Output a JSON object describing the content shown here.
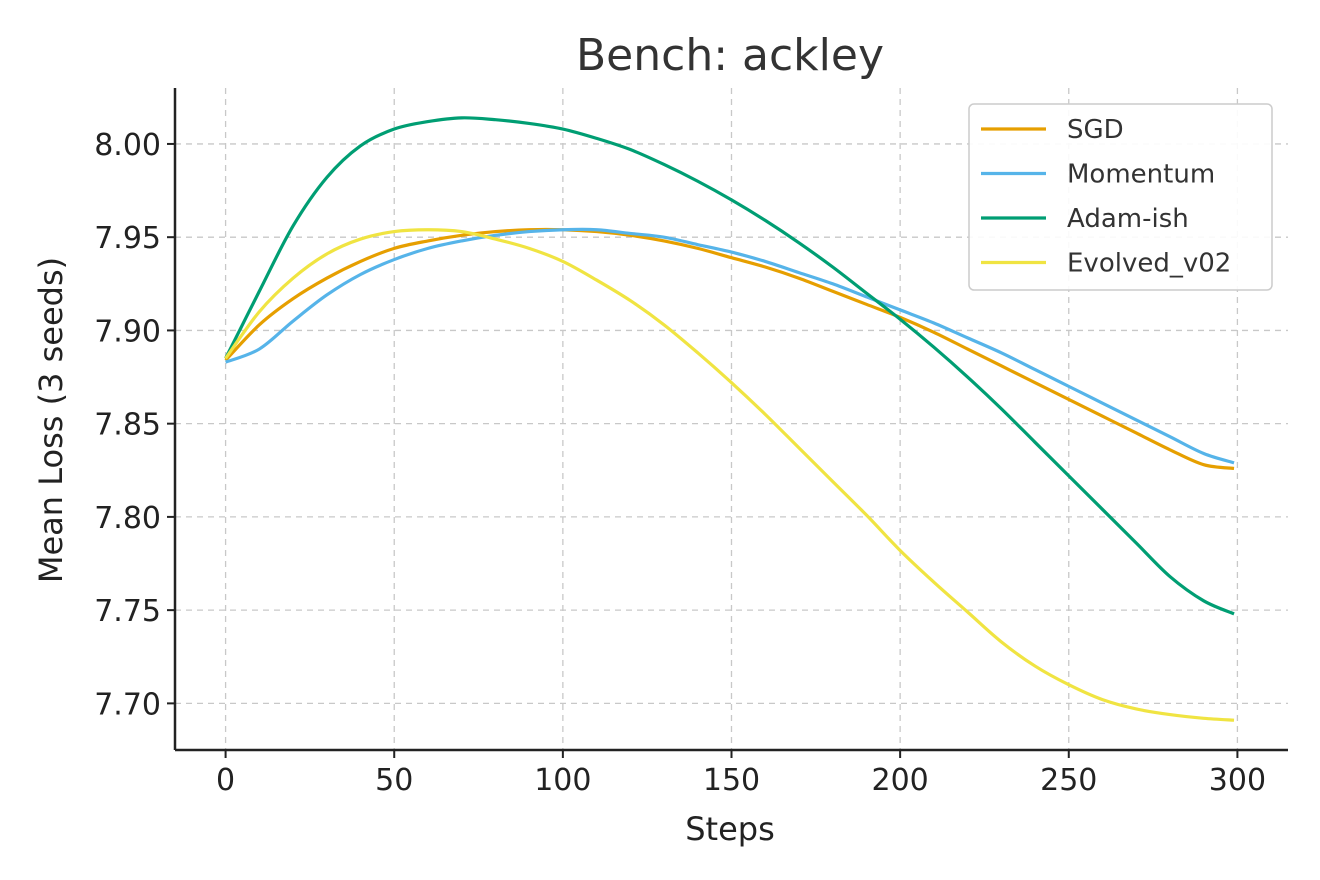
{
  "chart_data": {
    "type": "line",
    "title": "Bench: ackley",
    "xlabel": "Steps",
    "ylabel": "Mean Loss (3 seeds)",
    "xlim": [
      -15,
      315
    ],
    "ylim": [
      7.675,
      8.03
    ],
    "xticks": [
      0,
      50,
      100,
      150,
      200,
      250,
      300
    ],
    "xtick_labels": [
      "0",
      "50",
      "100",
      "150",
      "200",
      "250",
      "300"
    ],
    "yticks": [
      7.7,
      7.75,
      7.8,
      7.85,
      7.9,
      7.95,
      8.0
    ],
    "ytick_labels": [
      "7.70",
      "7.75",
      "7.80",
      "7.85",
      "7.90",
      "7.95",
      "8.00"
    ],
    "grid": true,
    "legend_position": "top-right",
    "x": [
      0,
      10,
      20,
      30,
      40,
      50,
      60,
      70,
      80,
      90,
      100,
      110,
      120,
      130,
      140,
      150,
      160,
      170,
      180,
      190,
      200,
      210,
      220,
      230,
      240,
      250,
      260,
      270,
      280,
      290,
      299
    ],
    "series": [
      {
        "name": "SGD",
        "color": "#E69F00",
        "values": [
          7.884,
          7.903,
          7.917,
          7.928,
          7.937,
          7.944,
          7.948,
          7.951,
          7.953,
          7.954,
          7.954,
          7.953,
          7.951,
          7.948,
          7.944,
          7.939,
          7.934,
          7.928,
          7.921,
          7.914,
          7.907,
          7.899,
          7.89,
          7.881,
          7.872,
          7.863,
          7.854,
          7.845,
          7.836,
          7.828,
          7.826
        ]
      },
      {
        "name": "Momentum",
        "color": "#56B4E9",
        "values": [
          7.883,
          7.89,
          7.905,
          7.919,
          7.93,
          7.938,
          7.944,
          7.948,
          7.951,
          7.953,
          7.954,
          7.954,
          7.952,
          7.95,
          7.946,
          7.942,
          7.937,
          7.931,
          7.925,
          7.918,
          7.911,
          7.904,
          7.896,
          7.888,
          7.879,
          7.87,
          7.861,
          7.852,
          7.843,
          7.834,
          7.829
        ]
      },
      {
        "name": "Adam-ish",
        "color": "#009E73",
        "values": [
          7.885,
          7.921,
          7.956,
          7.982,
          7.999,
          8.008,
          8.012,
          8.014,
          8.013,
          8.011,
          8.008,
          8.003,
          7.997,
          7.989,
          7.98,
          7.97,
          7.959,
          7.947,
          7.934,
          7.92,
          7.906,
          7.891,
          7.875,
          7.858,
          7.84,
          7.822,
          7.804,
          7.786,
          7.768,
          7.755,
          7.748
        ]
      },
      {
        "name": "Evolved_v02",
        "color": "#F0E442",
        "values": [
          7.885,
          7.91,
          7.928,
          7.941,
          7.949,
          7.953,
          7.954,
          7.953,
          7.949,
          7.944,
          7.937,
          7.927,
          7.916,
          7.903,
          7.888,
          7.872,
          7.855,
          7.837,
          7.819,
          7.801,
          7.782,
          7.765,
          7.749,
          7.733,
          7.72,
          7.71,
          7.702,
          7.697,
          7.694,
          7.692,
          7.691
        ]
      }
    ]
  }
}
